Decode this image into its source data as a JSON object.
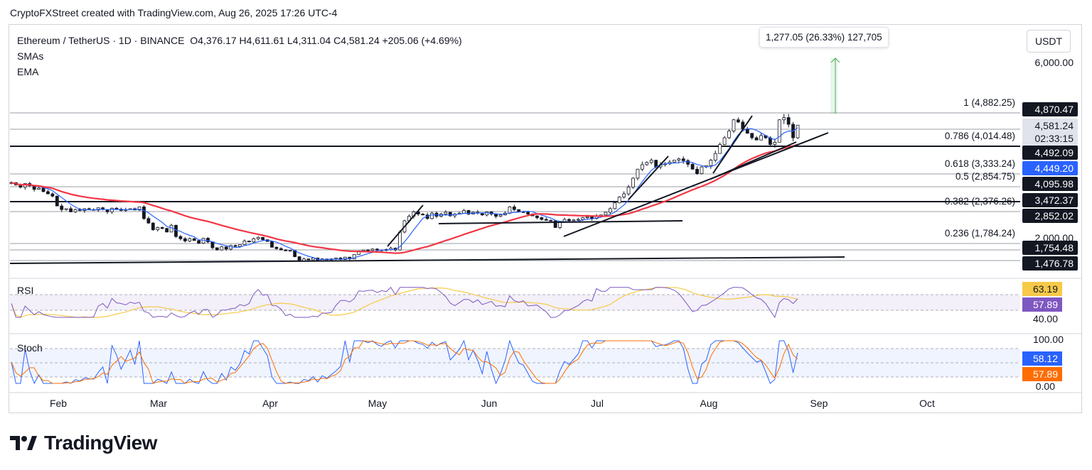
{
  "header": {
    "credit": "CryptoFXStreet created with TradingView.com, Aug 26, 2025 17:26 UTC-4"
  },
  "legend": {
    "symbol": "Ethereum / TetherUS · 1D · BINANCE",
    "ohlc": "O4,376.17  H4,611.61  L4,311.04  C4,581.24  +205.06 (+4.69%)",
    "ind1": "SMAs",
    "ind2": "EMA"
  },
  "measure_label": "1,277.05 (26.33%) 127,705",
  "currency_button": "USDT",
  "footer": {
    "brand": "TradingView"
  },
  "panels": {
    "rsi_label": "RSI",
    "stoch_label": "Stoch"
  },
  "colors": {
    "up": "#131722",
    "down": "#131722",
    "sma_fast": "#2962ff",
    "ema": "#f23645",
    "rsi": "#7e57c2",
    "rsi_ma": "#f7c948",
    "stoch_k": "#2962ff",
    "stoch_d": "#ff6d00",
    "axis_text": "#131722",
    "green_arrow": "#4caf50"
  },
  "chart_data": {
    "type": "candlestick",
    "title": "Ethereum / TetherUS · 1D · BINANCE",
    "x_ticks": [
      "Feb",
      "Mar",
      "Apr",
      "May",
      "Jun",
      "Jul",
      "Aug",
      "Sep",
      "Oct"
    ],
    "price_axis_ticks": [
      "6,000.00",
      "2,000.00"
    ],
    "fib_levels": [
      {
        "ratio": "1",
        "price": "4,882.25",
        "label": "1 (4,882.25)"
      },
      {
        "ratio": "0.786",
        "price": "4,014.48",
        "label": "0.786 (4,014.48)"
      },
      {
        "ratio": "0.618",
        "price": "3,333.24",
        "label": "0.618 (3,333.24)"
      },
      {
        "ratio": "0.5",
        "price": "2,854.75",
        "label": "0.5 (2,854.75)"
      },
      {
        "ratio": "0.382",
        "price": "2,376.26",
        "label": "0.382 (2,376.26)"
      },
      {
        "ratio": "0.236",
        "price": "1,784.24",
        "label": "0.236 (1,784.24)"
      }
    ],
    "price_badges": [
      {
        "value": "4,870.47",
        "color": "#131722",
        "text_color": "#ffffff"
      },
      {
        "value": "4,581.24",
        "sub": "02:33:15",
        "color": "#e0e3eb",
        "text_color": "#131722"
      },
      {
        "value": "4,492.09",
        "color": "#131722",
        "text_color": "#ffffff"
      },
      {
        "value": "4,449.20",
        "color": "#2962ff",
        "text_color": "#ffffff"
      },
      {
        "value": "4,095.98",
        "color": "#131722",
        "text_color": "#ffffff"
      },
      {
        "value": "3,472.37",
        "color": "#131722",
        "text_color": "#ffffff"
      },
      {
        "value": "2,852.02",
        "color": "#131722",
        "text_color": "#ffffff"
      },
      {
        "value": "1,754.48",
        "color": "#131722",
        "text_color": "#ffffff"
      },
      {
        "value": "1,476.78",
        "color": "#131722",
        "text_color": "#ffffff"
      }
    ],
    "close_series": [
      3300,
      3250,
      3200,
      3280,
      3230,
      3150,
      3180,
      3100,
      3050,
      3000,
      2780,
      2700,
      2720,
      2650,
      2700,
      2680,
      2720,
      2700,
      2690,
      2740,
      2700,
      2650,
      2730,
      2710,
      2680,
      2700,
      2720,
      2690,
      2760,
      2500,
      2400,
      2250,
      2300,
      2280,
      2200,
      2350,
      2100,
      2050,
      2000,
      2050,
      2010,
      1950,
      2060,
      1980,
      1850,
      1800,
      1870,
      1820,
      1900,
      1880,
      1920,
      2000,
      1980,
      2050,
      2080,
      2030,
      1990,
      1860,
      1830,
      1800,
      1780,
      1790,
      1650,
      1550,
      1600,
      1580,
      1620,
      1560,
      1600,
      1580,
      1600,
      1620,
      1590,
      1640,
      1600,
      1700,
      1780,
      1800,
      1790,
      1820,
      1800,
      1790,
      1810,
      1840,
      1800,
      2200,
      2450,
      2550,
      2650,
      2600,
      2580,
      2500,
      2620,
      2550,
      2600,
      2640,
      2560,
      2600,
      2620,
      2680,
      2600,
      2640,
      2620,
      2580,
      2650,
      2600,
      2550,
      2580,
      2620,
      2760,
      2700,
      2650,
      2640,
      2600,
      2560,
      2520,
      2480,
      2460,
      2450,
      2300,
      2420,
      2480,
      2450,
      2470,
      2480,
      2520,
      2540,
      2500,
      2560,
      2580,
      2640,
      2720,
      2850,
      2980,
      3050,
      3200,
      3400,
      3600,
      3700,
      3750,
      3800,
      3650,
      3700,
      3720,
      3760,
      3800,
      3830,
      3790,
      3710,
      3600,
      3500,
      3650,
      3680,
      3800,
      3950,
      4150,
      4300,
      4450,
      4700,
      4650,
      4500,
      4400,
      4300,
      4250,
      4350,
      4300,
      4150,
      4200,
      4700,
      4750,
      4600,
      4300,
      4581
    ],
    "ema_series_note": "smoothed overlay",
    "rsi": {
      "values_shown": [
        "63.19",
        "57.89"
      ],
      "level_label": "40.00"
    },
    "stoch": {
      "values_shown": [
        "58.12",
        "57.89"
      ],
      "axis_labels": [
        "100.00",
        "0.00"
      ]
    },
    "measure": {
      "label": "1,277.05 (26.33%) 127,705"
    }
  }
}
